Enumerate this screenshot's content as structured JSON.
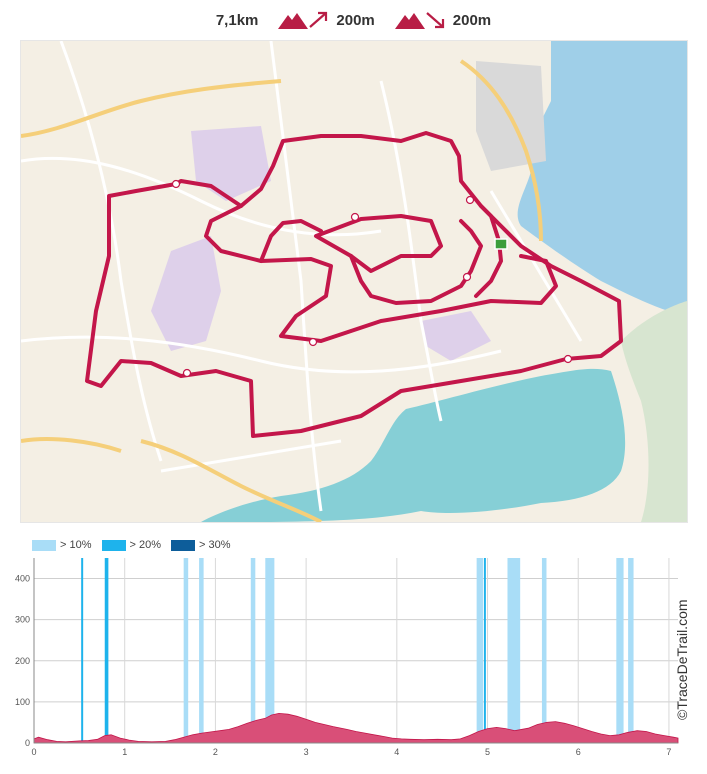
{
  "stats": {
    "distance": "7,1km",
    "ascent": "200m",
    "descent": "200m"
  },
  "legend": [
    {
      "label": "> 10%",
      "color": "#a9ddf7"
    },
    {
      "label": "> 20%",
      "color": "#1eb3ec"
    },
    {
      "label": "> 30%",
      "color": "#0d5d9a"
    }
  ],
  "credit": "©TraceDeTrail.com",
  "colors": {
    "route": "#c0174a",
    "profile_fill": "#d94f78",
    "sea": "#9ed0ea",
    "land": "#f5f0e6"
  },
  "chart_data": {
    "type": "area",
    "xlabel": "",
    "ylabel": "",
    "xlim": [
      0,
      7.1
    ],
    "ylim": [
      0,
      450
    ],
    "x_ticks": [
      "0",
      "1",
      "2",
      "3",
      "4",
      "5",
      "6",
      "7"
    ],
    "y_ticks": [
      "0",
      "100",
      "200",
      "300",
      "400"
    ],
    "grid": true,
    "series": [
      {
        "x": [
          0,
          0.05,
          0.15,
          0.25,
          0.35,
          0.5,
          0.6,
          0.7,
          0.78,
          0.85,
          0.95,
          1.05,
          1.15,
          1.3,
          1.45,
          1.55,
          1.65,
          1.75,
          1.85,
          1.95,
          2.05,
          2.15,
          2.25,
          2.35,
          2.45,
          2.55,
          2.62,
          2.7,
          2.8,
          2.9,
          3.0,
          3.1,
          3.2,
          3.3,
          3.45,
          3.55,
          3.65,
          3.75,
          3.85,
          3.95,
          4.05,
          4.15,
          4.3,
          4.45,
          4.6,
          4.7,
          4.8,
          4.9,
          5.0,
          5.1,
          5.2,
          5.3,
          5.45,
          5.55,
          5.65,
          5.75,
          5.85,
          5.95,
          6.05,
          6.15,
          6.25,
          6.35,
          6.45,
          6.55,
          6.65,
          6.75,
          6.85,
          6.95,
          7.05,
          7.1
        ],
        "y": [
          10,
          14,
          8,
          4,
          3,
          5,
          6,
          9,
          18,
          20,
          12,
          7,
          4,
          3,
          4,
          8,
          14,
          20,
          24,
          27,
          30,
          33,
          40,
          48,
          55,
          60,
          68,
          72,
          70,
          65,
          58,
          50,
          45,
          40,
          33,
          28,
          24,
          20,
          16,
          12,
          10,
          9,
          8,
          9,
          8,
          10,
          18,
          28,
          35,
          38,
          35,
          30,
          36,
          45,
          50,
          52,
          48,
          42,
          35,
          28,
          22,
          18,
          20,
          26,
          30,
          28,
          22,
          18,
          14,
          12
        ]
      }
    ],
    "steep_segments": [
      {
        "level": "> 20%",
        "from": 0.52,
        "to": 0.54
      },
      {
        "level": "> 20%",
        "from": 0.78,
        "to": 0.82
      },
      {
        "level": "> 10%",
        "from": 1.65,
        "to": 1.7
      },
      {
        "level": "> 10%",
        "from": 1.82,
        "to": 1.87
      },
      {
        "level": "> 10%",
        "from": 2.39,
        "to": 2.44
      },
      {
        "level": "> 10%",
        "from": 2.55,
        "to": 2.65
      },
      {
        "level": "> 10%",
        "from": 4.88,
        "to": 4.95
      },
      {
        "level": "> 20%",
        "from": 4.96,
        "to": 4.98
      },
      {
        "level": "> 10%",
        "from": 5.22,
        "to": 5.36
      },
      {
        "level": "> 10%",
        "from": 5.6,
        "to": 5.65
      },
      {
        "level": "> 10%",
        "from": 6.42,
        "to": 6.5
      },
      {
        "level": "> 10%",
        "from": 6.55,
        "to": 6.61
      }
    ]
  }
}
